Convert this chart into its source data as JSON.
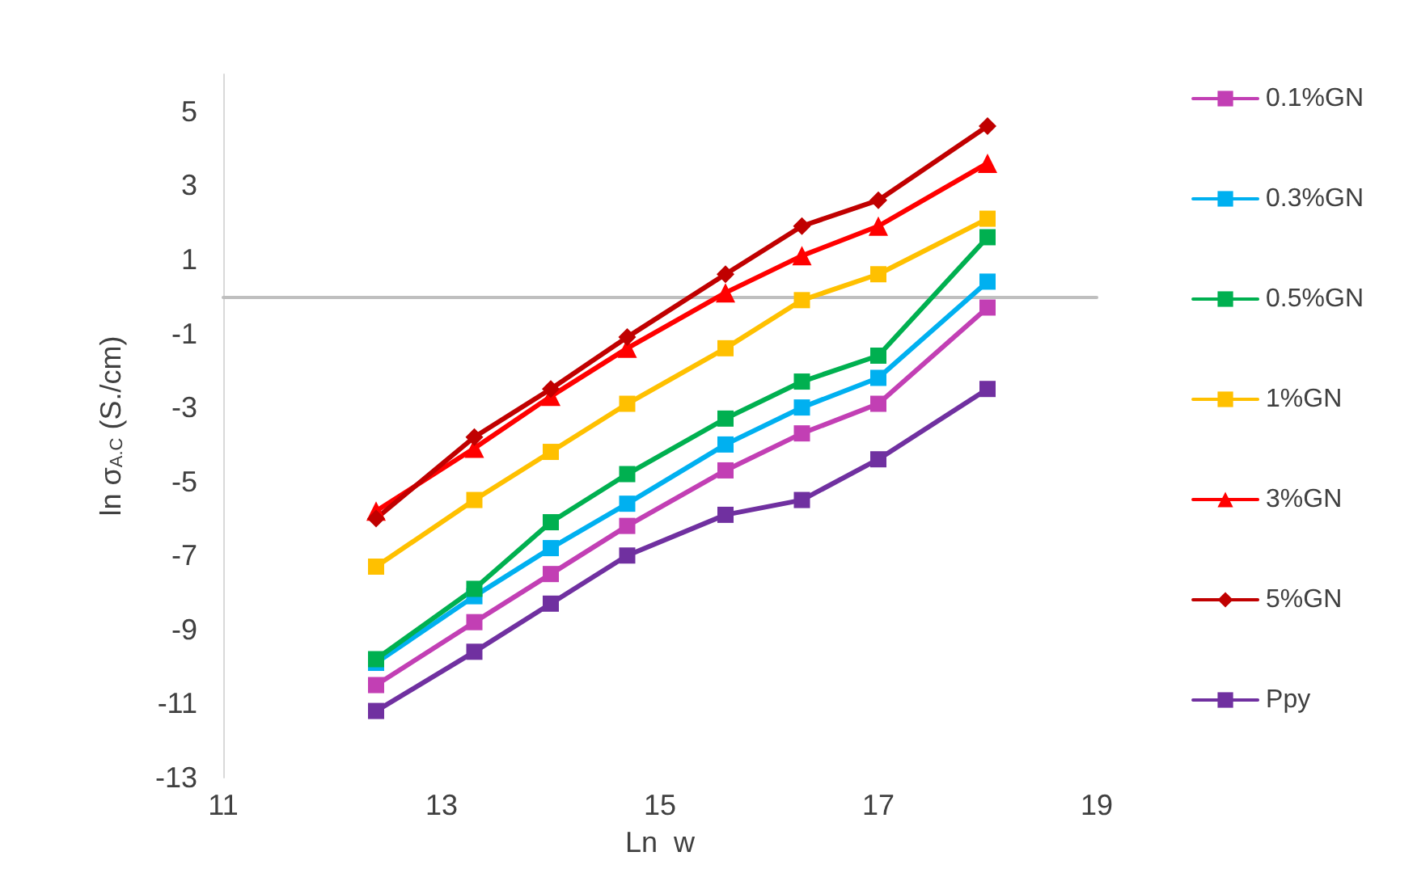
{
  "chart_data": {
    "type": "line",
    "xlabel": "Ln  w",
    "ylabel": "ln σ$_{A.C}$ (S./cm)",
    "xlim": [
      11,
      19
    ],
    "xticks": [
      11,
      13,
      15,
      17,
      19
    ],
    "ylim": [
      -13,
      6
    ],
    "yticks": [
      -13,
      -11,
      -9,
      -7,
      -5,
      -3,
      -1,
      1,
      3,
      5
    ],
    "grid": false,
    "legend": "right",
    "series": [
      {
        "name": "0.1%GN",
        "color": "#c23fb4",
        "marker": "square",
        "x": [
          12.4,
          13.3,
          14.0,
          14.7,
          15.6,
          16.3,
          17.0,
          18.0
        ],
        "values": [
          -10.5,
          -8.8,
          -7.5,
          -6.2,
          -4.7,
          -3.7,
          -2.9,
          -0.3
        ]
      },
      {
        "name": "0.3%GN",
        "color": "#00b0f0",
        "marker": "square",
        "x": [
          12.4,
          13.3,
          14.0,
          14.7,
          15.6,
          16.3,
          17.0,
          18.0
        ],
        "values": [
          -9.9,
          -8.1,
          -6.8,
          -5.6,
          -4.0,
          -3.0,
          -2.2,
          0.4
        ]
      },
      {
        "name": "0.5%GN",
        "color": "#00b050",
        "marker": "square",
        "x": [
          12.4,
          13.3,
          14.0,
          14.7,
          15.6,
          16.3,
          17.0,
          18.0
        ],
        "values": [
          -9.8,
          -7.9,
          -6.1,
          -4.8,
          -3.3,
          -2.3,
          -1.6,
          1.6
        ]
      },
      {
        "name": "1%GN",
        "color": "#ffc000",
        "marker": "square",
        "x": [
          12.4,
          13.3,
          14.0,
          14.7,
          15.6,
          16.3,
          17.0,
          18.0
        ],
        "values": [
          -7.3,
          -5.5,
          -4.2,
          -2.9,
          -1.4,
          -0.1,
          0.6,
          2.1
        ]
      },
      {
        "name": "3%GN",
        "color": "#ff0000",
        "marker": "triangle",
        "x": [
          12.4,
          13.3,
          14.0,
          14.7,
          15.6,
          16.3,
          17.0,
          18.0
        ],
        "values": [
          -5.8,
          -4.1,
          -2.7,
          -1.4,
          0.1,
          1.1,
          1.9,
          3.6
        ]
      },
      {
        "name": "5%GN",
        "color": "#c00000",
        "marker": "diamond",
        "x": [
          12.4,
          13.3,
          14.0,
          14.7,
          15.6,
          16.3,
          17.0,
          18.0
        ],
        "values": [
          -6.0,
          -3.8,
          -2.5,
          -1.1,
          0.6,
          1.9,
          2.6,
          4.6
        ]
      },
      {
        "name": "Ppy",
        "color": "#7030a0",
        "marker": "square",
        "x": [
          12.4,
          13.3,
          14.0,
          14.7,
          15.6,
          16.3,
          17.0,
          18.0
        ],
        "values": [
          -11.2,
          -9.6,
          -8.3,
          -7.0,
          -5.9,
          -5.5,
          -4.4,
          -2.5
        ]
      }
    ]
  }
}
